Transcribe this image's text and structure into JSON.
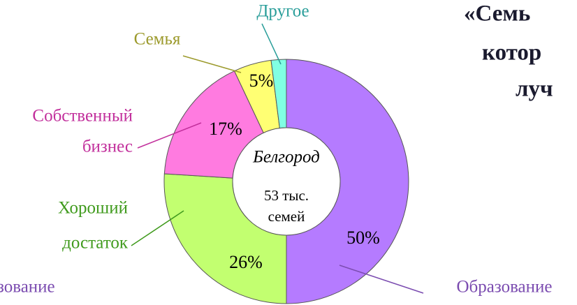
{
  "chart_data": {
    "type": "pie",
    "title_lines": [
      "«Семь",
      "котор",
      "луч"
    ],
    "cropped_label": "зование",
    "categories": [
      [
        "Образование"
      ],
      [
        "Хороший",
        "достаток"
      ],
      [
        "Собственный",
        "бизнес"
      ],
      [
        "Семья"
      ],
      [
        "Другое"
      ]
    ],
    "values": [
      50,
      26,
      17,
      5,
      2
    ],
    "value_labels": [
      "50%",
      "26%",
      "17%",
      "5%",
      null
    ],
    "colors": [
      "#b57bff",
      "#c2ff70",
      "#ff7be0",
      "#ffff73",
      "#80ffe3"
    ],
    "label_colors": [
      "#7b4cb0",
      "#3f9a1c",
      "#c2309c",
      "#9c9a2c",
      "#2a9e9a"
    ],
    "center_text": {
      "city": "Белгород",
      "lines": [
        "53 тыс.",
        "семей"
      ]
    }
  }
}
